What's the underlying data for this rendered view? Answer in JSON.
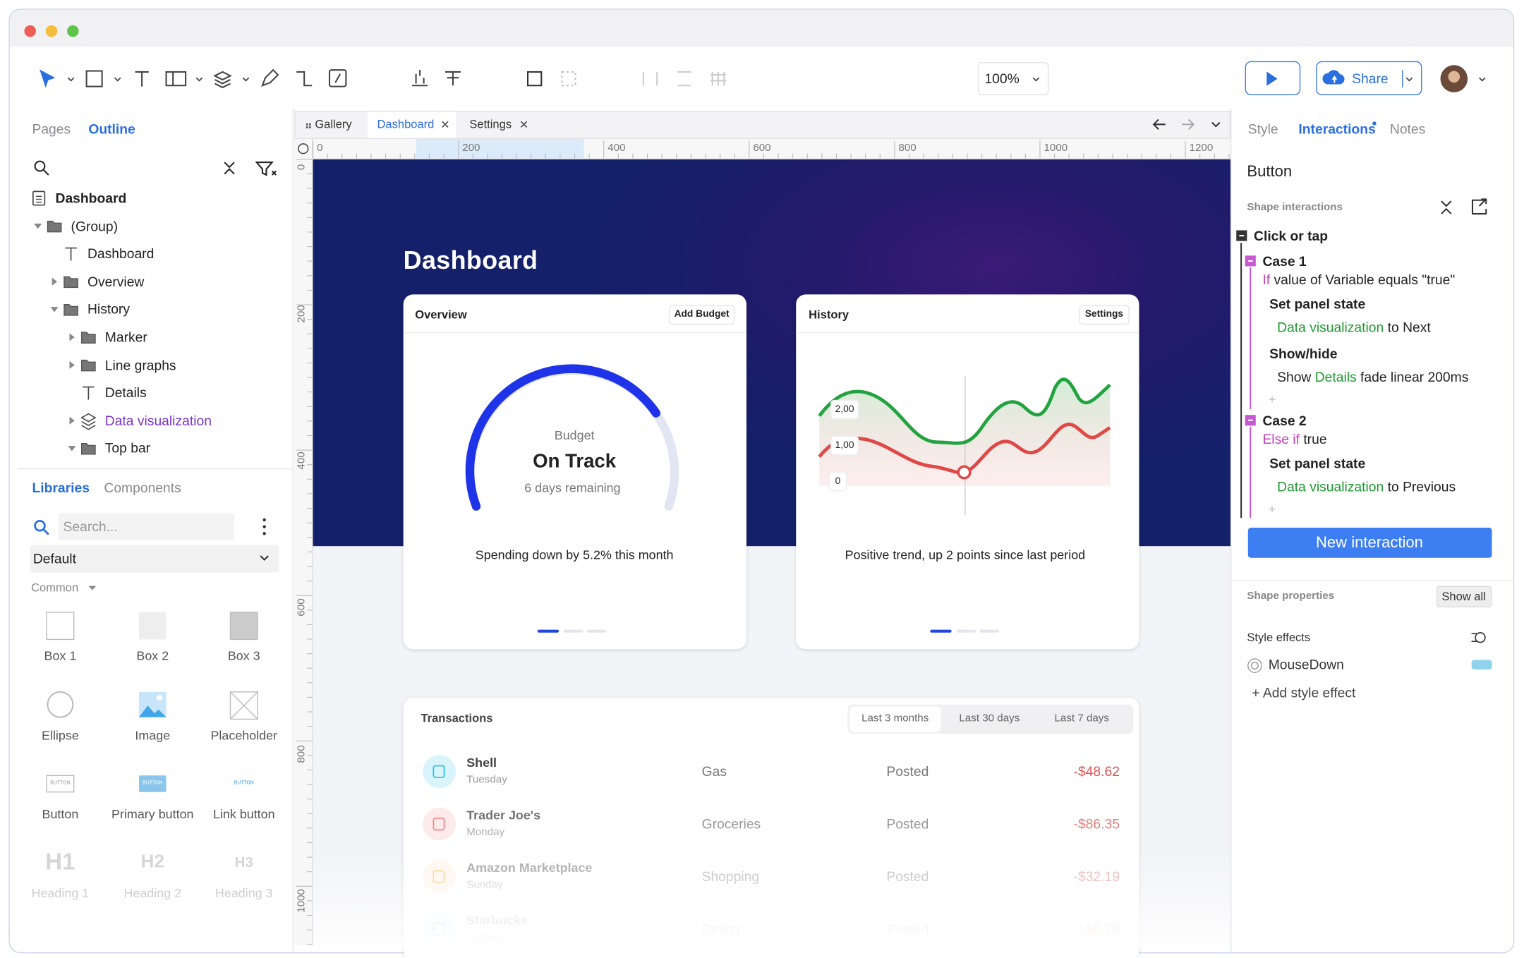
{
  "toolbar": {
    "zoom": "100%",
    "share": "Share"
  },
  "left_panel": {
    "tabs": [
      "Pages",
      "Outline"
    ],
    "outline": [
      "Dashboard",
      "(Group)",
      "Dashboard",
      "Overview",
      "History",
      "Marker",
      "Line graphs",
      "Details",
      "Data visualization",
      "Top bar"
    ],
    "library_tabs": [
      "Libraries",
      "Components"
    ],
    "search_placeholder": "Search...",
    "library": "Default",
    "section": "Common",
    "items": [
      "Box 1",
      "Box 2",
      "Box 3",
      "Ellipse",
      "Image",
      "Placeholder",
      "Button",
      "Primary button",
      "Link button",
      "Heading 1",
      "Heading 2",
      "Heading 3"
    ],
    "button_previews": [
      "BUTTON",
      "BUTTON",
      "BUTTON"
    ],
    "heading_previews": [
      "H1",
      "H2",
      "H3"
    ]
  },
  "editor": {
    "tabs": [
      "Gallery",
      "Dashboard",
      "Settings"
    ],
    "ruler_x": [
      "0",
      "200",
      "400",
      "600",
      "800",
      "1000",
      "1200"
    ],
    "ruler_y": [
      "0",
      "200",
      "400",
      "600",
      "800",
      "1000"
    ]
  },
  "canvas": {
    "title": "Dashboard",
    "overview": {
      "title": "Overview",
      "button": "Add Budget",
      "gauge_label": "Budget",
      "gauge_status": "On Track",
      "gauge_sub": "6 days remaining",
      "caption": "Spending down by 5.2% this month"
    },
    "history": {
      "title": "History",
      "button": "Settings",
      "y_labels": [
        "2,00",
        "1,00",
        "0"
      ],
      "caption": "Positive trend, up 2 points since last period"
    },
    "transactions": {
      "title": "Transactions",
      "filters": [
        "Last 3 months",
        "Last 30 days",
        "Last 7 days"
      ],
      "rows": [
        [
          "Shell",
          "Tuesday",
          "Gas",
          "Posted",
          "-$48.62"
        ],
        [
          "Trader Joe's",
          "Monday",
          "Groceries",
          "Posted",
          "-$86.35"
        ],
        [
          "Amazon Marketplace",
          "Sunday",
          "Shopping",
          "Posted",
          "-$32.19"
        ],
        [
          "Starbucks",
          "Sunday",
          "Dining",
          "Posted",
          "-$6.78"
        ]
      ]
    }
  },
  "right_panel": {
    "tabs": [
      "Style",
      "Interactions",
      "Notes"
    ],
    "element": "Button",
    "section": "Shape interactions",
    "trigger": "Click or tap",
    "cases": [
      {
        "label": "Case 1",
        "keyword": "If",
        "condition": "value of Variable equals \"true\"",
        "actions": [
          {
            "title": "Set panel state",
            "prefix": "",
            "target": "Data visualization",
            "suffix": "to Next"
          },
          {
            "title": "Show/hide",
            "prefix": "Show",
            "target": "Details",
            "suffix": "fade linear 200ms"
          }
        ]
      },
      {
        "label": "Case 2",
        "keyword": "Else if",
        "condition": "true",
        "actions": [
          {
            "title": "Set panel state",
            "prefix": "",
            "target": "Data visualization",
            "suffix": "to Previous"
          }
        ]
      }
    ],
    "add_case": "+",
    "new_interaction": "New interaction",
    "properties": "Shape properties",
    "show_all": "Show all",
    "style_effects": "Style effects",
    "effect": "MouseDown",
    "add_effect": "+ Add style effect"
  }
}
